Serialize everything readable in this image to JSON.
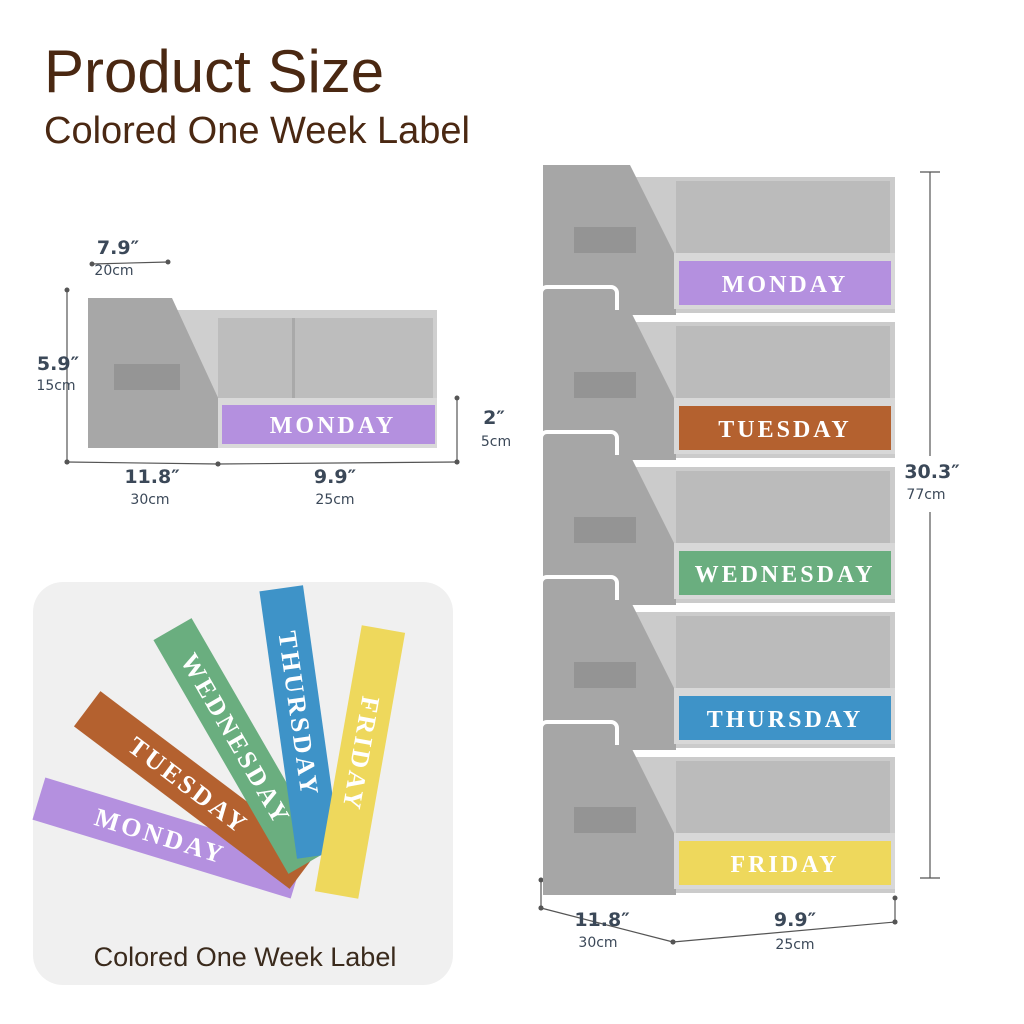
{
  "header": {
    "title": "Product Size",
    "subtitle": "Colored One Week Label"
  },
  "single_bin": {
    "label": "MONDAY",
    "depth": {
      "inches": "7.9″",
      "cm": "20cm"
    },
    "height": {
      "inches": "5.9″",
      "cm": "15cm"
    },
    "side": {
      "inches": "11.8″",
      "cm": "30cm"
    },
    "width": {
      "inches": "9.9″",
      "cm": "25cm"
    },
    "front": {
      "inches": "2″",
      "cm": "5cm"
    }
  },
  "stack": {
    "labels": [
      "MONDAY",
      "TUESDAY",
      "WEDNESDAY",
      "THURSDAY",
      "FRIDAY"
    ],
    "height": {
      "inches": "30.3″",
      "cm": "77cm"
    },
    "side": {
      "inches": "11.8″",
      "cm": "30cm"
    },
    "width": {
      "inches": "9.9″",
      "cm": "25cm"
    }
  },
  "strips": {
    "labels": [
      "MONDAY",
      "TUESDAY",
      "WEDNESDAY",
      "THURSDAY",
      "FRIDAY"
    ],
    "caption": "Colored One Week Label"
  }
}
